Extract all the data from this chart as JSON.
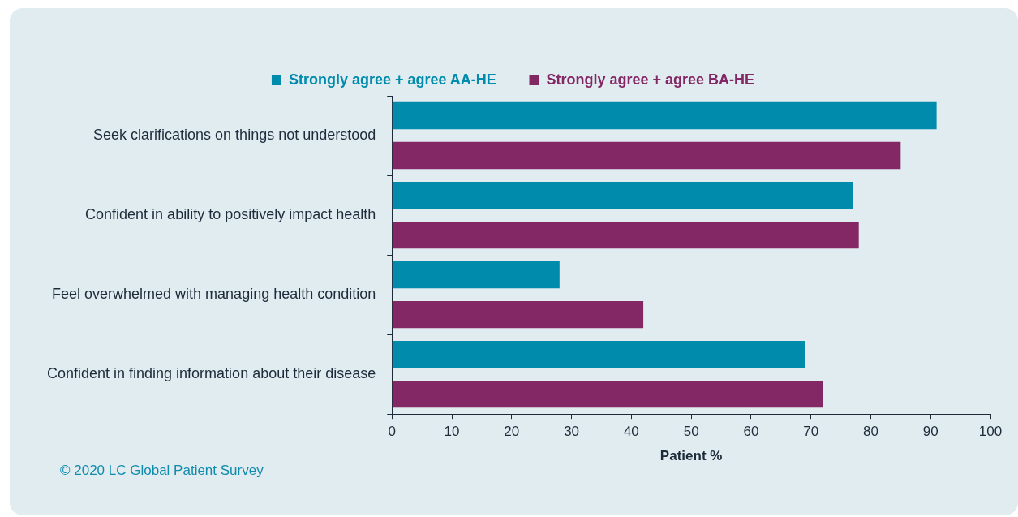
{
  "chart_data": {
    "type": "bar",
    "orientation": "horizontal",
    "categories": [
      "Seek clarifications on things not understood",
      "Confident in ability to positively impact health",
      "Feel overwhelmed with managing health condition",
      "Confident in finding information about their disease"
    ],
    "series": [
      {
        "name": "Strongly agree + agree AA-HE",
        "color": "#008aab",
        "values": [
          91,
          77,
          28,
          69
        ]
      },
      {
        "name": "Strongly agree + agree BA-HE",
        "color": "#842765",
        "values": [
          85,
          78,
          42,
          72
        ]
      }
    ],
    "xlabel": "Patient %",
    "xlim": [
      0,
      100
    ],
    "xticks": [
      0,
      10,
      20,
      30,
      40,
      50,
      60,
      70,
      80,
      90,
      100
    ],
    "legend": "top",
    "grid": false,
    "annotations": [
      "© 2020 LC Global Patient Survey"
    ]
  }
}
